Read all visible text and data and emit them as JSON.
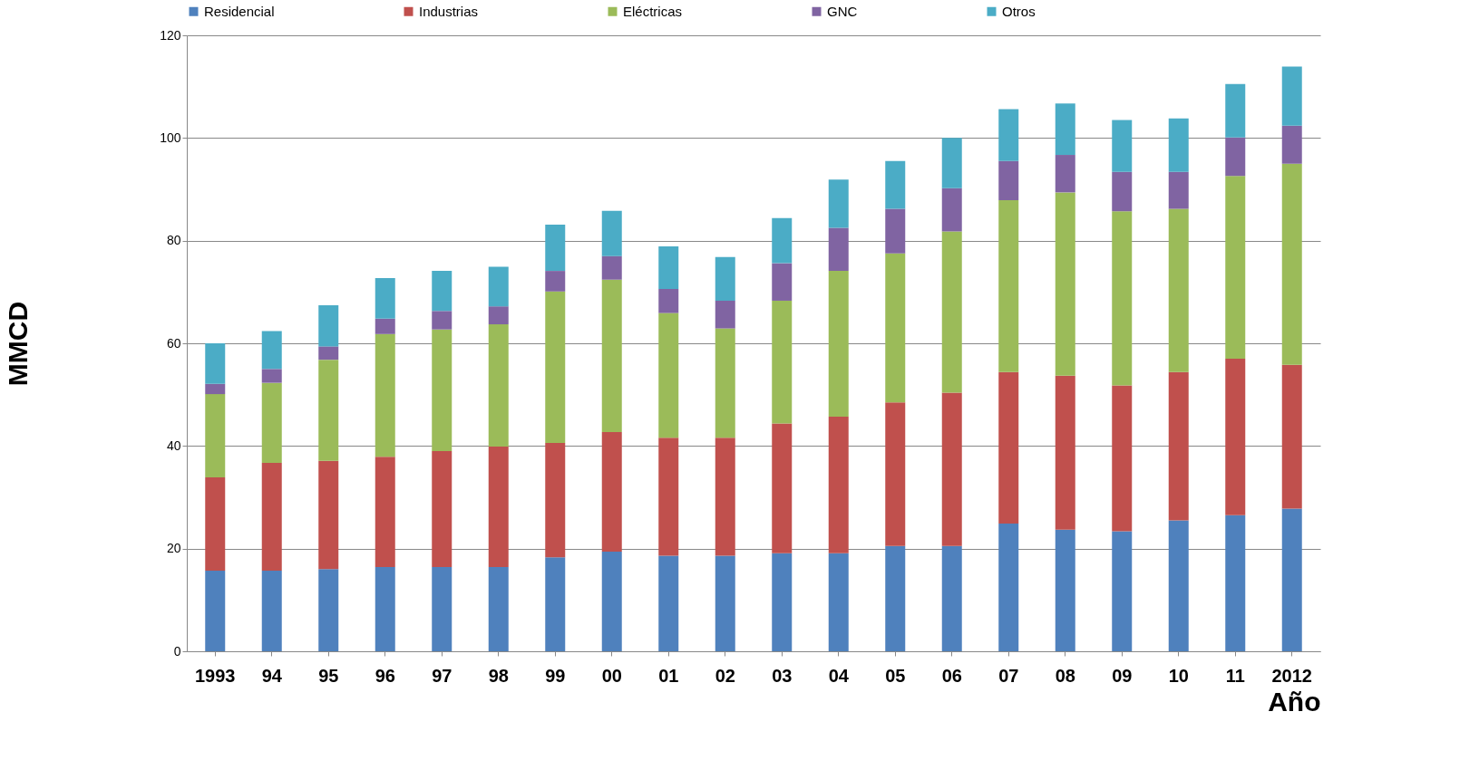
{
  "chart_data": {
    "type": "bar",
    "stacked": true,
    "xlabel": "Año",
    "ylabel": "MMCD",
    "categories": [
      "1993",
      "94",
      "95",
      "96",
      "97",
      "98",
      "99",
      "00",
      "01",
      "02",
      "03",
      "04",
      "05",
      "06",
      "07",
      "08",
      "09",
      "10",
      "11",
      "2012"
    ],
    "series": [
      {
        "name": "Residencial",
        "color": "#4f81bd",
        "values": [
          15.7,
          15.7,
          16.0,
          16.4,
          16.4,
          16.4,
          18.3,
          19.4,
          18.6,
          18.6,
          19.1,
          19.1,
          20.5,
          20.5,
          24.9,
          23.7,
          23.4,
          25.5,
          26.5,
          27.8
        ]
      },
      {
        "name": "Industrias",
        "color": "#c0504d",
        "values": [
          18.2,
          21.0,
          21.1,
          21.5,
          22.6,
          23.5,
          22.3,
          23.3,
          23.0,
          23.0,
          25.3,
          26.6,
          28.0,
          29.9,
          29.5,
          30.0,
          28.4,
          28.9,
          30.5,
          28.0
        ]
      },
      {
        "name": "Eléctricas",
        "color": "#9bbb59",
        "values": [
          16.2,
          15.6,
          19.7,
          23.9,
          23.7,
          23.8,
          29.5,
          29.7,
          24.3,
          21.3,
          23.9,
          28.4,
          29.0,
          31.4,
          33.5,
          35.7,
          33.9,
          31.8,
          35.6,
          39.2
        ]
      },
      {
        "name": "GNC",
        "color": "#8064a2",
        "values": [
          2.0,
          2.7,
          2.6,
          3.0,
          3.6,
          3.5,
          4.0,
          4.6,
          4.7,
          5.4,
          7.3,
          8.4,
          8.7,
          8.4,
          7.6,
          7.3,
          7.7,
          7.2,
          7.5,
          7.4
        ]
      },
      {
        "name": "Otros",
        "color": "#4bacc6",
        "values": [
          7.9,
          7.4,
          8.0,
          7.9,
          7.8,
          7.7,
          9.0,
          8.8,
          8.3,
          8.5,
          8.8,
          9.4,
          9.3,
          9.8,
          10.1,
          10.0,
          10.1,
          10.4,
          10.4,
          11.5
        ]
      }
    ],
    "ylim": [
      0,
      120
    ],
    "yticks": [
      0,
      20,
      40,
      60,
      80,
      100,
      120
    ],
    "grid": "y",
    "legend": "top"
  }
}
